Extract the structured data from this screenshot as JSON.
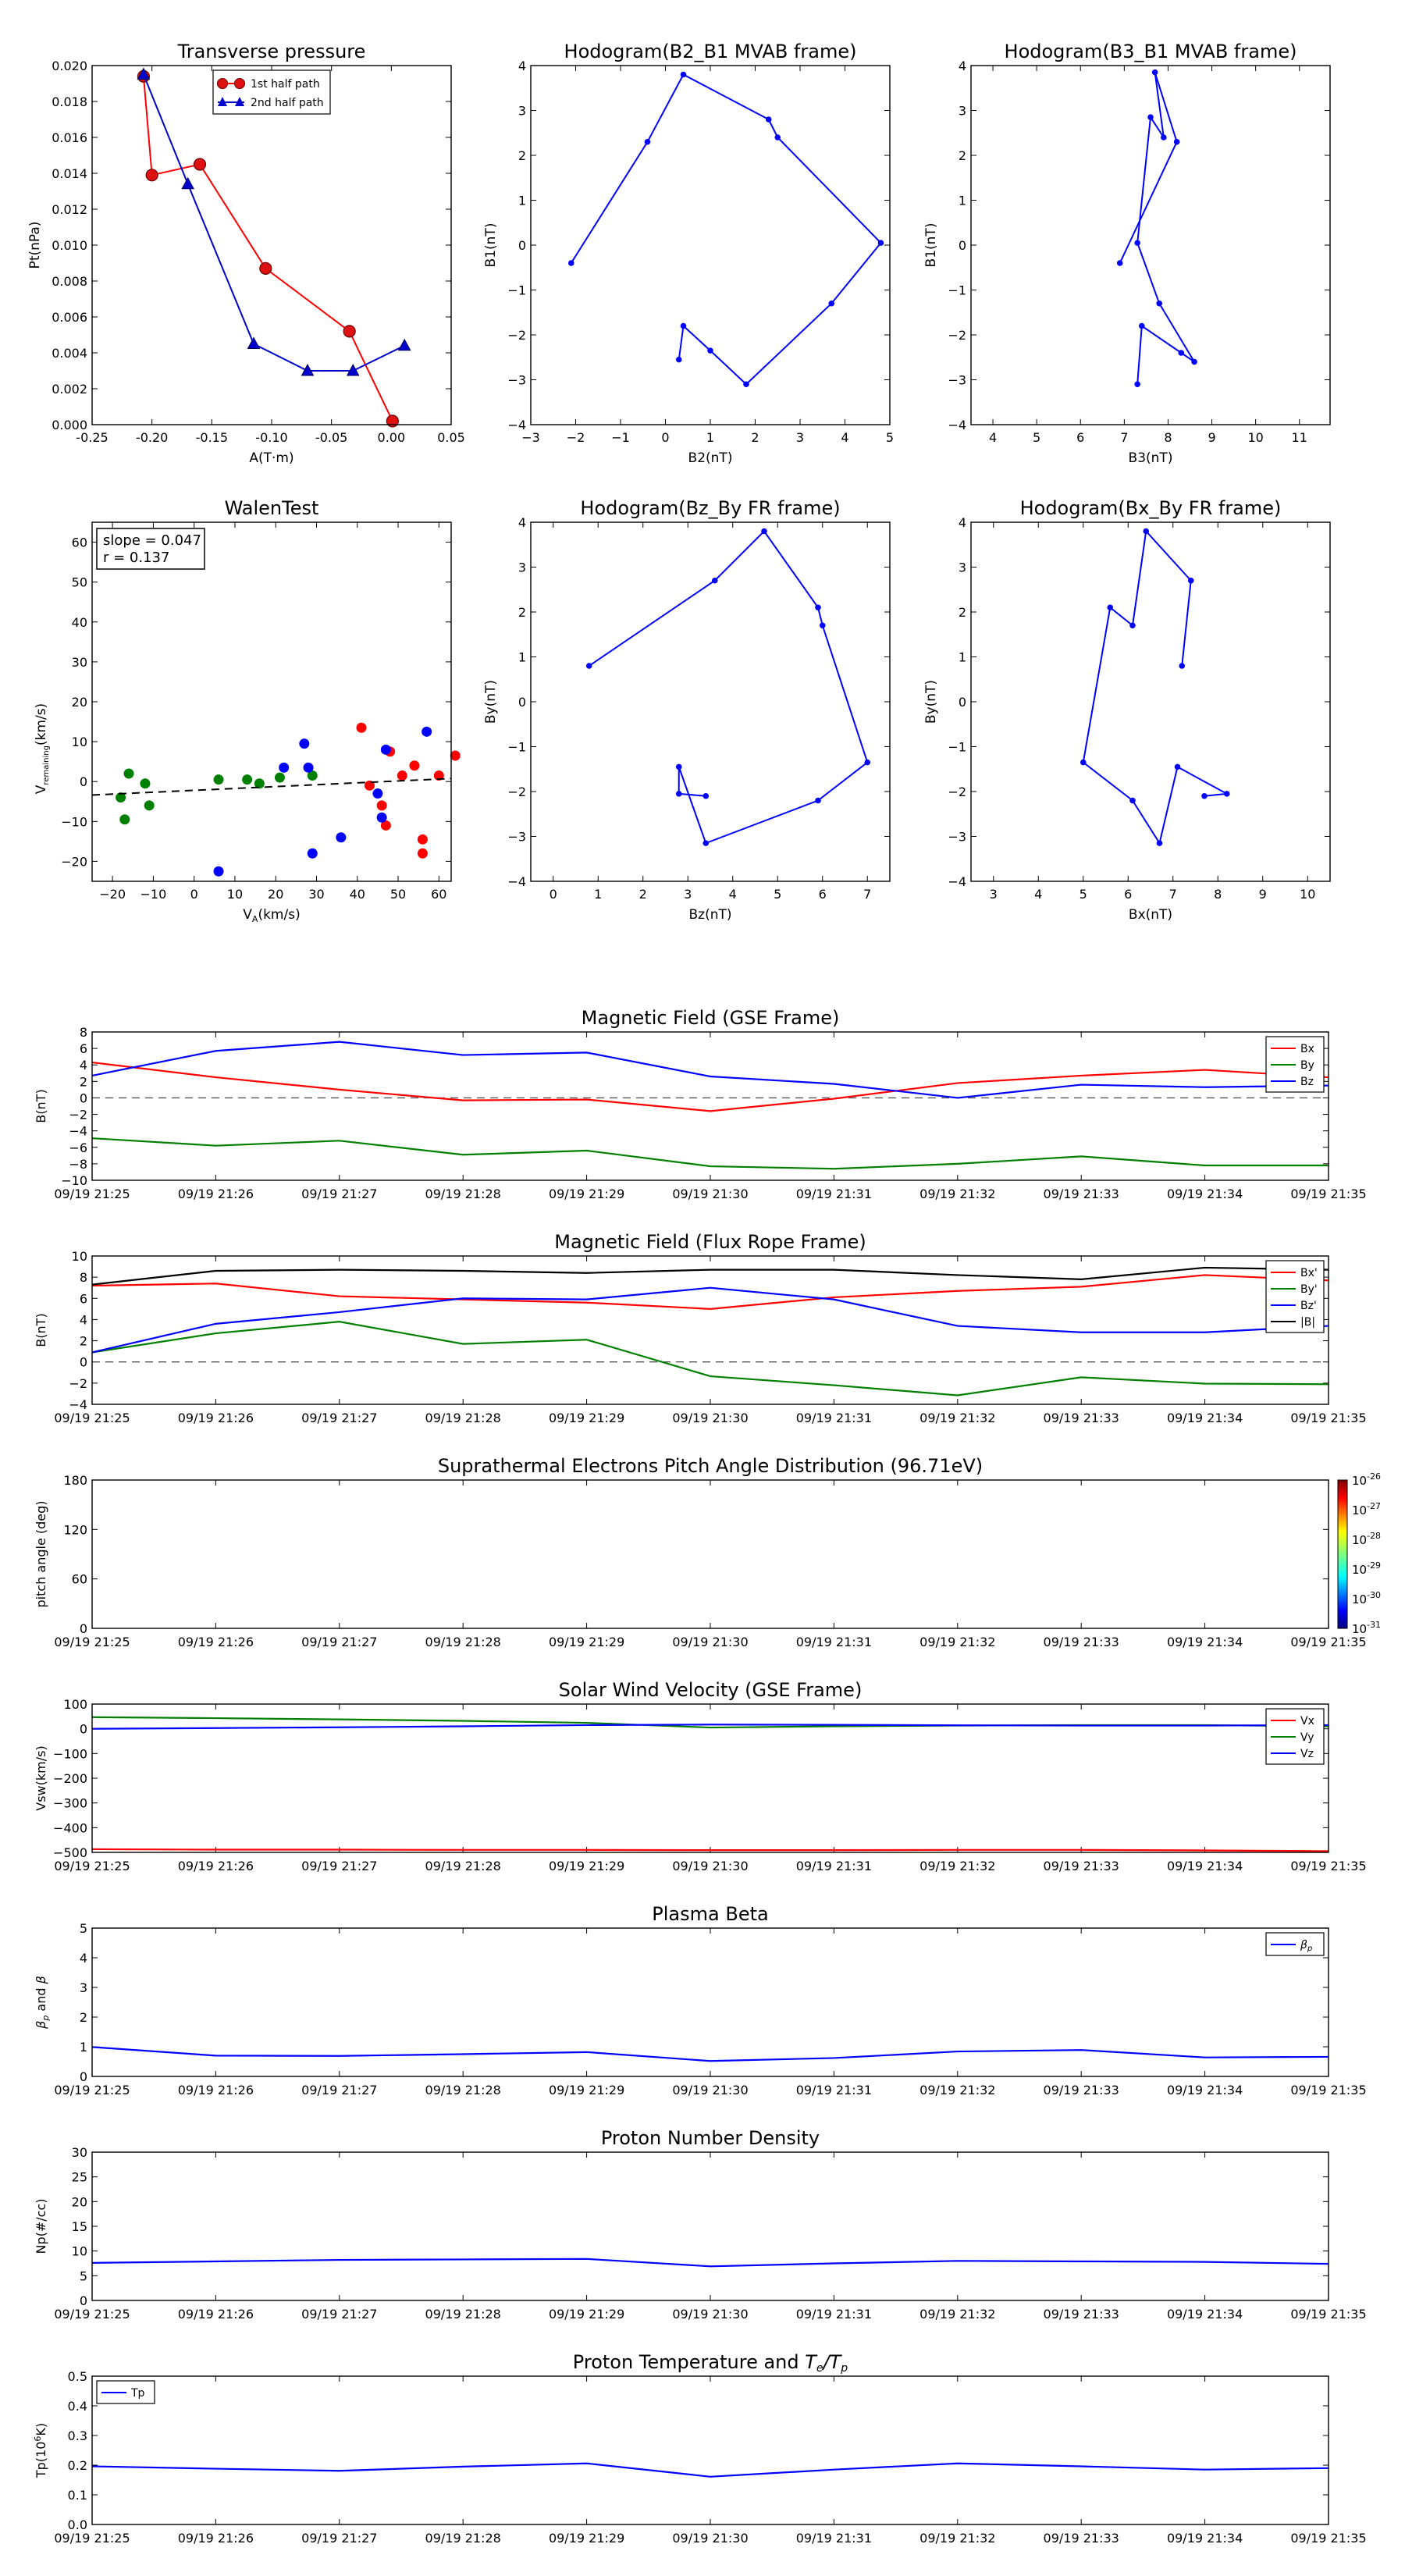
{
  "figure": {
    "background": "#ffffff"
  },
  "chart_data": [
    {
      "id": "transverse",
      "type": "line",
      "title": "Transverse pressure",
      "xlabel": "A(T·m)",
      "ylabel": "Pt(nPa)",
      "xlim": [
        -0.25,
        0.05
      ],
      "ylim": [
        0,
        0.02
      ],
      "xticks": [
        "-0.25",
        "-0.20",
        "-0.15",
        "-0.10",
        "-0.05",
        "0.00",
        "0.05"
      ],
      "yticks": [
        "0.000",
        "0.002",
        "0.004",
        "0.006",
        "0.008",
        "0.010",
        "0.012",
        "0.014",
        "0.016",
        "0.018",
        "0.020"
      ],
      "legend": {
        "position": "top-right",
        "entries": [
          "1st half path",
          "2nd half path"
        ]
      },
      "series": [
        {
          "name": "1st half path",
          "color": "#ff0000",
          "marker": "circle",
          "x": [
            0.001,
            -0.035,
            -0.105,
            -0.16,
            -0.2,
            -0.207
          ],
          "y": [
            0.0002,
            0.0052,
            0.0087,
            0.0145,
            0.0139,
            0.0194
          ]
        },
        {
          "name": "2nd half path",
          "color": "#0000cc",
          "marker": "triangle",
          "x": [
            -0.207,
            -0.17,
            -0.115,
            -0.07,
            -0.032,
            0.011
          ],
          "y": [
            0.0195,
            0.0134,
            0.0045,
            0.003,
            0.003,
            0.0044
          ]
        }
      ]
    },
    {
      "id": "hodo_b2b1",
      "type": "line",
      "title": "Hodogram(B2_B1 MVAB frame)",
      "xlabel": "B2(nT)",
      "ylabel": "B1(nT)",
      "xlim": [
        -3,
        5
      ],
      "ylim": [
        -4,
        4
      ],
      "xticks": [
        "−3",
        "−2",
        "−1",
        "0",
        "1",
        "2",
        "3",
        "4",
        "5"
      ],
      "yticks": [
        "−4",
        "−3",
        "−2",
        "−1",
        "0",
        "1",
        "2",
        "3",
        "4"
      ],
      "series": [
        {
          "color": "#0000ff",
          "marker": "dot",
          "x": [
            -2.1,
            -0.4,
            0.4,
            2.3,
            2.5,
            4.8,
            3.7,
            1.8,
            1.0,
            0.4,
            0.3
          ],
          "y": [
            -0.4,
            2.3,
            3.8,
            2.8,
            2.4,
            0.05,
            -1.3,
            -3.1,
            -2.35,
            -1.8,
            -2.55
          ]
        }
      ]
    },
    {
      "id": "hodo_b3b1",
      "type": "line",
      "title": "Hodogram(B3_B1 MVAB frame)",
      "xlabel": "B3(nT)",
      "ylabel": "B1(nT)",
      "xlim": [
        3.5,
        11.7
      ],
      "ylim": [
        -4,
        4
      ],
      "xticks": [
        "4",
        "5",
        "6",
        "7",
        "8",
        "9",
        "10",
        "11"
      ],
      "yticks": [
        "−4",
        "−3",
        "−2",
        "−1",
        "0",
        "1",
        "2",
        "3",
        "4"
      ],
      "series": [
        {
          "color": "#0000ff",
          "marker": "dot",
          "x": [
            6.9,
            8.2,
            7.7,
            7.9,
            7.6,
            7.3,
            7.8,
            8.6,
            8.3,
            7.4,
            7.3
          ],
          "y": [
            -0.4,
            2.3,
            3.85,
            2.4,
            2.85,
            0.05,
            -1.3,
            -2.6,
            -2.4,
            -1.8,
            -3.1
          ]
        }
      ]
    },
    {
      "id": "walen",
      "type": "scatter",
      "title": "WalenTest",
      "xlabel": "V_A(km/s)",
      "ylabel": "V_remaining(km/s)",
      "xlim": [
        -25,
        63
      ],
      "ylim": [
        -25,
        65
      ],
      "xticks": [
        "−20",
        "−10",
        "0",
        "10",
        "20",
        "30",
        "40",
        "50",
        "60"
      ],
      "yticks": [
        "−20",
        "−10",
        "0",
        "10",
        "20",
        "30",
        "40",
        "50",
        "60"
      ],
      "annotation": [
        "slope = 0.047",
        "r = 0.137"
      ],
      "fit": {
        "slope": 0.047,
        "intercept": -2.2
      },
      "series": [
        {
          "color": "#ff0000",
          "x": [
            41,
            43,
            46,
            47,
            48,
            51,
            54,
            56,
            56,
            60,
            64
          ],
          "y": [
            13.5,
            -1,
            -6,
            -11,
            7.5,
            1.5,
            4,
            -14.5,
            -18,
            1.5,
            6.5
          ]
        },
        {
          "color": "#008000",
          "x": [
            -18,
            -17,
            -16,
            -12,
            -11,
            6,
            13,
            16,
            21,
            29
          ],
          "y": [
            -4,
            -9.5,
            2,
            -0.5,
            -6,
            0.5,
            0.5,
            -0.5,
            1,
            1.5
          ]
        },
        {
          "color": "#0000ff",
          "x": [
            6,
            22,
            27,
            28,
            29,
            36,
            45,
            46,
            47,
            57
          ],
          "y": [
            -22.5,
            3.5,
            9.5,
            3.5,
            -18,
            -14,
            -3,
            -9,
            8,
            12.5
          ]
        }
      ]
    },
    {
      "id": "hodo_bzby",
      "type": "line",
      "title": "Hodogram(Bz_By FR frame)",
      "xlabel": "Bz(nT)",
      "ylabel": "By(nT)",
      "xlim": [
        -0.5,
        7.5
      ],
      "ylim": [
        -4,
        4
      ],
      "xticks": [
        "0",
        "1",
        "2",
        "3",
        "4",
        "5",
        "6",
        "7"
      ],
      "yticks": [
        "−4",
        "−3",
        "−2",
        "−1",
        "0",
        "1",
        "2",
        "3",
        "4"
      ],
      "series": [
        {
          "color": "#0000ff",
          "marker": "dot",
          "x": [
            0.8,
            3.6,
            4.7,
            5.9,
            6.0,
            7.0,
            5.9,
            3.4,
            2.8,
            2.8,
            3.4
          ],
          "y": [
            0.8,
            2.7,
            3.8,
            2.1,
            1.7,
            -1.35,
            -2.2,
            -3.15,
            -1.45,
            -2.05,
            -2.1
          ]
        }
      ]
    },
    {
      "id": "hodo_bxby",
      "type": "line",
      "title": "Hodogram(Bx_By FR frame)",
      "xlabel": "Bx(nT)",
      "ylabel": "By(nT)",
      "xlim": [
        2.5,
        10.5
      ],
      "ylim": [
        -4,
        4
      ],
      "xticks": [
        "3",
        "4",
        "5",
        "6",
        "7",
        "8",
        "9",
        "10"
      ],
      "yticks": [
        "−4",
        "−3",
        "−2",
        "−1",
        "0",
        "1",
        "2",
        "3",
        "4"
      ],
      "series": [
        {
          "color": "#0000ff",
          "marker": "dot",
          "x": [
            7.2,
            7.4,
            6.4,
            6.1,
            5.6,
            5.0,
            6.1,
            6.7,
            7.1,
            8.2,
            7.7
          ],
          "y": [
            0.8,
            2.7,
            3.8,
            1.7,
            2.1,
            -1.35,
            -2.2,
            -3.15,
            -1.45,
            -2.05,
            -2.1
          ]
        }
      ]
    },
    {
      "id": "mag_gse",
      "type": "line",
      "title": "Magnetic Field (GSE Frame)",
      "ylabel": "B(nT)",
      "ylim": [
        -10,
        8
      ],
      "yticks": [
        "−10",
        "−8",
        "−6",
        "−4",
        "−2",
        "0",
        "2",
        "4",
        "6",
        "8"
      ],
      "zero_line": true,
      "legend": {
        "position": "top-right",
        "entries": [
          "Bx",
          "By",
          "Bz"
        ]
      },
      "series": [
        {
          "name": "Bx",
          "color": "#ff0000",
          "values": [
            4.3,
            2.5,
            1.0,
            -0.3,
            -0.2,
            -1.6,
            -0.1,
            1.8,
            2.7,
            3.4,
            2.5
          ]
        },
        {
          "name": "By",
          "color": "#008000",
          "values": [
            -4.9,
            -5.8,
            -5.2,
            -6.9,
            -6.4,
            -8.3,
            -8.6,
            -8.0,
            -7.1,
            -8.2,
            -8.2
          ]
        },
        {
          "name": "Bz",
          "color": "#0000ff",
          "values": [
            2.7,
            5.7,
            6.8,
            5.2,
            5.5,
            2.6,
            1.7,
            0.0,
            1.6,
            1.3,
            1.5
          ]
        }
      ]
    },
    {
      "id": "mag_fr",
      "type": "line",
      "title": "Magnetic Field (Flux Rope Frame)",
      "ylabel": "B(nT)",
      "ylim": [
        -4,
        10
      ],
      "yticks": [
        "−4",
        "−2",
        "0",
        "2",
        "4",
        "6",
        "8",
        "10"
      ],
      "zero_line": true,
      "legend": {
        "position": "top-right",
        "entries": [
          "Bx'",
          "By'",
          "Bz'",
          "|B|"
        ]
      },
      "series": [
        {
          "name": "Bx'",
          "color": "#ff0000",
          "values": [
            7.2,
            7.4,
            6.2,
            5.9,
            5.6,
            5.0,
            6.1,
            6.7,
            7.1,
            8.2,
            7.7
          ]
        },
        {
          "name": "By'",
          "color": "#008000",
          "values": [
            0.9,
            2.7,
            3.8,
            1.7,
            2.1,
            -1.35,
            -2.2,
            -3.15,
            -1.45,
            -2.05,
            -2.1
          ]
        },
        {
          "name": "Bz'",
          "color": "#0000ff",
          "values": [
            0.9,
            3.6,
            4.7,
            6.0,
            5.9,
            7.0,
            5.9,
            3.4,
            2.8,
            2.8,
            3.4
          ]
        },
        {
          "name": "|B|",
          "color": "#000000",
          "values": [
            7.3,
            8.6,
            8.7,
            8.6,
            8.4,
            8.7,
            8.7,
            8.2,
            7.8,
            8.9,
            8.7
          ]
        }
      ]
    },
    {
      "id": "pad",
      "type": "heatmap",
      "title": "Suprathermal Electrons Pitch Angle Distribution (96.71eV)",
      "ylabel": "pitch angle (deg)",
      "ylim": [
        0,
        180
      ],
      "yticks": [
        "0",
        "60",
        "120",
        "180"
      ],
      "colorbar": {
        "labels": [
          "10^-26",
          "10^-27",
          "10^-28",
          "10^-29",
          "10^-30",
          "10^-31"
        ]
      }
    },
    {
      "id": "vsw",
      "type": "line",
      "title": "Solar Wind Velocity (GSE Frame)",
      "ylabel": "Vsw(km/s)",
      "ylim": [
        -500,
        100
      ],
      "yticks": [
        "−500",
        "−400",
        "−300",
        "−200",
        "−100",
        "0",
        "100"
      ],
      "legend": {
        "position": "top-right",
        "entries": [
          "Vx",
          "Vy",
          "Vz"
        ]
      },
      "series": [
        {
          "name": "Vx",
          "color": "#ff0000",
          "values": [
            -487,
            -489,
            -489,
            -490,
            -490,
            -491,
            -491,
            -490,
            -490,
            -492,
            -495
          ]
        },
        {
          "name": "Vy",
          "color": "#008000",
          "values": [
            47,
            43,
            38,
            32,
            24,
            5,
            10,
            13,
            15,
            15,
            10
          ]
        },
        {
          "name": "Vz",
          "color": "#0000ff",
          "values": [
            0,
            3,
            6,
            10,
            15,
            17,
            16,
            14,
            13,
            13,
            15
          ]
        }
      ]
    },
    {
      "id": "beta",
      "type": "line",
      "title": "Plasma Beta",
      "ylabel": "βp and β",
      "ylim": [
        0,
        5
      ],
      "yticks": [
        "0",
        "1",
        "2",
        "3",
        "4",
        "5"
      ],
      "legend": {
        "position": "top-right",
        "entries": [
          "βp"
        ]
      },
      "series": [
        {
          "name": "βp",
          "color": "#0000ff",
          "values": [
            0.99,
            0.7,
            0.69,
            0.75,
            0.82,
            0.52,
            0.62,
            0.84,
            0.89,
            0.64,
            0.66
          ]
        }
      ]
    },
    {
      "id": "np",
      "type": "line",
      "title": "Proton Number Density",
      "ylabel": "Np(#/cc)",
      "ylim": [
        0,
        30
      ],
      "yticks": [
        "0",
        "5",
        "10",
        "15",
        "20",
        "25",
        "30"
      ],
      "series": [
        {
          "color": "#0000ff",
          "values": [
            7.6,
            7.9,
            8.2,
            8.3,
            8.4,
            6.9,
            7.5,
            8.0,
            7.9,
            7.8,
            7.4
          ]
        }
      ]
    },
    {
      "id": "tp",
      "type": "line",
      "title": "Proton Temperature and Te/Tp",
      "ylabel": "Tp(10^6K)",
      "ylim": [
        0,
        0.5
      ],
      "yticks": [
        "0.0",
        "0.1",
        "0.2",
        "0.3",
        "0.4",
        "0.5"
      ],
      "legend": {
        "position": "top-left",
        "entries": [
          "Tp"
        ]
      },
      "series": [
        {
          "name": "Tp",
          "color": "#0000ff",
          "values": [
            0.196,
            0.188,
            0.181,
            0.195,
            0.206,
            0.161,
            0.185,
            0.206,
            0.196,
            0.185,
            0.19
          ]
        }
      ]
    }
  ],
  "time_axis": {
    "ticks": [
      "09/19 21:25",
      "09/19 21:26",
      "09/19 21:27",
      "09/19 21:28",
      "09/19 21:29",
      "09/19 21:30",
      "09/19 21:31",
      "09/19 21:32",
      "09/19 21:33",
      "09/19 21:34",
      "09/19 21:35"
    ]
  }
}
